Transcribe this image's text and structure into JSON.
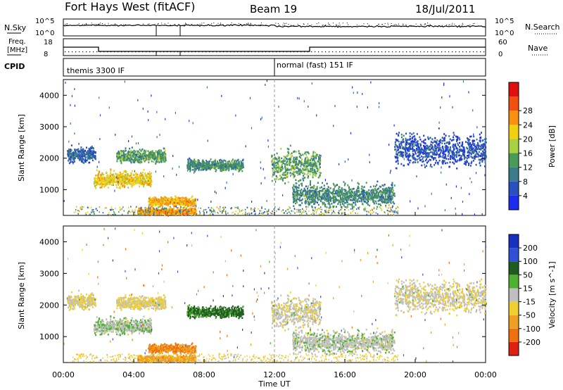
{
  "header": {
    "station": "Fort Hays West (fitACF)",
    "beam": "Beam 19",
    "date": "18/Jul/2011"
  },
  "noise_panel": {
    "left_label": "N.Sky",
    "left_ticks": [
      "10^5",
      "10^0"
    ],
    "right_ticks": [
      "10^5",
      "10^0"
    ],
    "right_label": "N.Search"
  },
  "freq_panel": {
    "left_label_line1": "Freq.",
    "left_label_line2": "[MHz]",
    "left_ticks": [
      "18",
      "8"
    ],
    "right_ticks": [
      "60",
      "0"
    ],
    "right_label": "Nave"
  },
  "cpid": {
    "label": "CPID",
    "modes": [
      {
        "name": "themis 3300 IF",
        "start_hour": 0
      },
      {
        "name": "normal (fast) 151 IF",
        "start_hour": 12
      }
    ]
  },
  "axes": {
    "ylabel": "Slant Range [km]",
    "yticks": [
      "1000",
      "2000",
      "3000",
      "4000"
    ],
    "xlabel": "Time UT",
    "xticks": [
      "00:00",
      "04:00",
      "08:00",
      "12:00",
      "16:00",
      "20:00",
      "00:00"
    ]
  },
  "power_scale": {
    "label": "Power [dB]",
    "ticks": [
      "4",
      "8",
      "12",
      "16",
      "20",
      "24",
      "28"
    ],
    "colors": [
      "#1e2cf0",
      "#2a50c0",
      "#3a7a8a",
      "#4a9a5a",
      "#a8d040",
      "#f0d010",
      "#f89010",
      "#f05010",
      "#e01010"
    ]
  },
  "velocity_scale": {
    "label": "Velocity [m s^-1]",
    "ticks": [
      "200",
      "100",
      "50",
      "15",
      "-15",
      "-50",
      "-100",
      "-200"
    ],
    "colors": [
      "#1830c0",
      "#3050d8",
      "#205c20",
      "#50b030",
      "#bfbfbf",
      "#f0d030",
      "#f0a020",
      "#f07010",
      "#e02010"
    ]
  },
  "chart_data": {
    "type": "heatmap",
    "title": "Fort Hays West (fitACF)",
    "xlabel": "Time UT",
    "ylabel": "Slant Range [km]",
    "xlim_hours": [
      0,
      24
    ],
    "ylim_km": [
      180,
      4500
    ],
    "freq_mhz": [
      {
        "start": 0,
        "end": 2.0,
        "value": 14
      },
      {
        "start": 2.0,
        "end": 14.0,
        "value": 11
      },
      {
        "start": 14.0,
        "end": 24,
        "value": 14
      }
    ],
    "scatter_regions": [
      {
        "name": "patch-a",
        "t_start": 0.2,
        "t_end": 1.8,
        "r_center": 2150,
        "r_width": 350,
        "power_db": 8,
        "velocity": -15
      },
      {
        "name": "patch-b",
        "t_start": 1.7,
        "t_end": 5.0,
        "r_center": 1350,
        "r_width": 350,
        "power_db": 22,
        "velocity": 10
      },
      {
        "name": "patch-c",
        "t_start": 3.0,
        "t_end": 5.8,
        "r_center": 2100,
        "r_width": 300,
        "power_db": 14,
        "velocity": -20
      },
      {
        "name": "patch-d",
        "t_start": 7.0,
        "t_end": 10.2,
        "r_center": 1800,
        "r_width": 250,
        "power_db": 12,
        "velocity": 60
      },
      {
        "name": "patch-e",
        "t_start": 4.8,
        "t_end": 7.5,
        "r_center": 650,
        "r_width": 200,
        "power_db": 24,
        "velocity": -100
      },
      {
        "name": "patch-f",
        "t_start": 4.2,
        "t_end": 7.5,
        "r_center": 330,
        "r_width": 150,
        "power_db": 26,
        "velocity": -80
      },
      {
        "name": "patch-g",
        "t_start": 11.8,
        "t_end": 14.6,
        "r_center": 1800,
        "r_width": 700,
        "power_db": 14,
        "velocity": -10
      },
      {
        "name": "patch-h",
        "t_start": 13.0,
        "t_end": 18.8,
        "r_center": 850,
        "r_width": 500,
        "power_db": 12,
        "velocity": 5
      },
      {
        "name": "patch-i",
        "t_start": 18.8,
        "t_end": 24,
        "r_center": 2300,
        "r_width": 700,
        "power_db": 6,
        "velocity": -10
      }
    ]
  }
}
